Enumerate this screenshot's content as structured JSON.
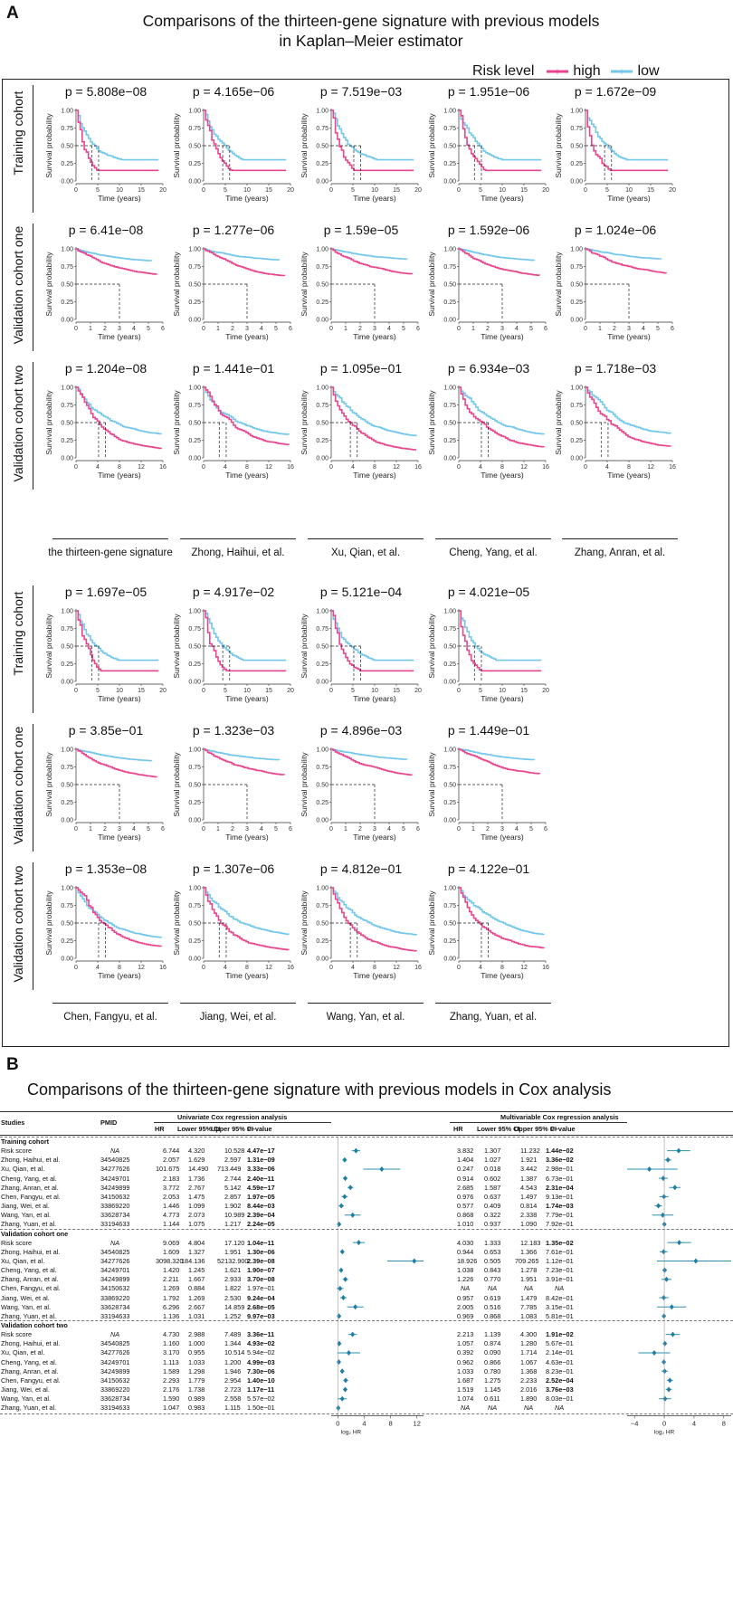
{
  "panel_a": {
    "letter": "A",
    "title_line1": "Comparisons of the thirteen-gene signature with previous models",
    "title_line2": "in Kaplan–Meier estimator",
    "legend_title": "Risk level",
    "legend_high": "high",
    "legend_low": "low",
    "colors": {
      "high": "#e8458f",
      "low": "#72c7ea"
    },
    "row_labels": [
      "Training cohort",
      "Validation cohort one",
      "Validation cohort two"
    ],
    "axis_ylabel": "Survival probability",
    "axis_xlabel": "Time (years)",
    "y_ticks": [
      "0.00",
      "0.25",
      "0.50",
      "0.75",
      "1.00"
    ],
    "x_ticks": {
      "train": [
        "0",
        "5",
        "10",
        "15",
        "20"
      ],
      "val1": [
        "0",
        "1",
        "2",
        "3",
        "4",
        "5",
        "6"
      ],
      "val2": [
        "0",
        "4",
        "8",
        "12",
        "16"
      ]
    },
    "block1_models": [
      "the thirteen-gene signature",
      "Zhong, Haihui, et al.",
      "Xu, Qian, et al.",
      "Cheng, Yang, et al.",
      "Zhang, Anran, et al."
    ],
    "block2_models": [
      "Chen, Fangyu, et al.",
      "Jiang, Wei, et al.",
      "Wang, Yan, et al.",
      "Zhang, Yuan, et al."
    ],
    "block1_p": [
      [
        "p = 5.808e−08",
        "p = 4.165e−06",
        "p = 7.519e−03",
        "p = 1.951e−06",
        "p = 1.672e−09"
      ],
      [
        "p = 6.41e−08",
        "p = 1.277e−06",
        "p = 1.59e−05",
        "p = 1.592e−06",
        "p = 1.024e−06"
      ],
      [
        "p = 1.204e−08",
        "p = 1.441e−01",
        "p = 1.095e−01",
        "p = 6.934e−03",
        "p = 1.718e−03"
      ]
    ],
    "block2_p": [
      [
        "p = 1.697e−05",
        "p = 4.917e−02",
        "p = 5.121e−04",
        "p = 4.021e−05"
      ],
      [
        "p = 3.85e−01",
        "p = 1.323e−03",
        "p = 4.896e−03",
        "p = 1.449e−01"
      ],
      [
        "p = 1.353e−08",
        "p = 1.307e−06",
        "p = 4.812e−01",
        "p = 4.122e−01"
      ]
    ]
  },
  "panel_b": {
    "letter": "B",
    "title": "Comparisons of the thirteen-gene signature with previous models in Cox analysis",
    "hdr_studies": "Studies",
    "hdr_pmid": "PMID",
    "hdr_uni": "Univariate Cox regression analysis",
    "hdr_multi": "Multivariable Cox regression analysis",
    "hdr_cols": [
      "HR",
      "Lower 95% CI",
      "Upper 95% CI",
      "P–value"
    ],
    "forest_axis_label": "log₂ HR",
    "uni_ticks": [
      "0",
      "4",
      "8",
      "12"
    ],
    "multi_ticks": [
      "−4",
      "0",
      "4",
      "8"
    ],
    "groups": [
      {
        "name": "Training cohort",
        "rows": [
          {
            "study": "Risk score",
            "pmid": "NA",
            "u": [
              "6.744",
              "4.320",
              "10.528",
              "4.47e−17"
            ],
            "ub": true,
            "m": [
              "3.832",
              "1.307",
              "11.232",
              "1.44e−02"
            ],
            "mb": true
          },
          {
            "study": "Zhong, Haihui, et al.",
            "pmid": "34540825",
            "u": [
              "2.057",
              "1.629",
              "2.597",
              "1.31e−09"
            ],
            "ub": true,
            "m": [
              "1.404",
              "1.027",
              "1.921",
              "3.36e−02"
            ],
            "mb": true
          },
          {
            "study": "Xu, Qian, et al.",
            "pmid": "34277626",
            "u": [
              "101.675",
              "14.490",
              "713.449",
              "3.33e−06"
            ],
            "ub": true,
            "m": [
              "0.247",
              "0.018",
              "3.442",
              "2.98e−01"
            ],
            "mb": false
          },
          {
            "study": "Cheng, Yang, et al.",
            "pmid": "34249701",
            "u": [
              "2.183",
              "1.736",
              "2.744",
              "2.40e−11"
            ],
            "ub": true,
            "m": [
              "0.914",
              "0.602",
              "1.387",
              "6.73e−01"
            ],
            "mb": false
          },
          {
            "study": "Zhang, Anran, et al.",
            "pmid": "34249899",
            "u": [
              "3.772",
              "2.767",
              "5.142",
              "4.59e−17"
            ],
            "ub": true,
            "m": [
              "2.685",
              "1.587",
              "4.543",
              "2.31e−04"
            ],
            "mb": true
          },
          {
            "study": "Chen, Fangyu, et al.",
            "pmid": "34150632",
            "u": [
              "2.053",
              "1.475",
              "2.857",
              "1.97e−05"
            ],
            "ub": true,
            "m": [
              "0.976",
              "0.637",
              "1.497",
              "9.13e−01"
            ],
            "mb": false
          },
          {
            "study": "Jiang, Wei, et al.",
            "pmid": "33869220",
            "u": [
              "1.446",
              "1.099",
              "1.902",
              "8.44e−03"
            ],
            "ub": true,
            "m": [
              "0.577",
              "0.409",
              "0.814",
              "1.74e−03"
            ],
            "mb": true
          },
          {
            "study": "Wang, Yan, et al.",
            "pmid": "33628734",
            "u": [
              "4.773",
              "2.073",
              "10.989",
              "2.39e−04"
            ],
            "ub": true,
            "m": [
              "0.868",
              "0.322",
              "2.338",
              "7.79e−01"
            ],
            "mb": false
          },
          {
            "study": "Zhang, Yuan, et al.",
            "pmid": "33194633",
            "u": [
              "1.144",
              "1.075",
              "1.217",
              "2.24e−05"
            ],
            "ub": true,
            "m": [
              "1.010",
              "0.937",
              "1.090",
              "7.92e−01"
            ],
            "mb": false
          }
        ]
      },
      {
        "name": "Validation cohort one",
        "rows": [
          {
            "study": "Risk score",
            "pmid": "NA",
            "u": [
              "9.069",
              "4.804",
              "17.120",
              "1.04e−11"
            ],
            "ub": true,
            "m": [
              "4.030",
              "1.333",
              "12.183",
              "1.35e−02"
            ],
            "mb": true
          },
          {
            "study": "Zhong, Haihui, et al.",
            "pmid": "34540825",
            "u": [
              "1.609",
              "1.327",
              "1.951",
              "1.30e−06"
            ],
            "ub": true,
            "m": [
              "0.944",
              "0.653",
              "1.366",
              "7.61e−01"
            ],
            "mb": false
          },
          {
            "study": "Xu, Qian, et al.",
            "pmid": "34277626",
            "u": [
              "3098.320",
              "184.136",
              "52132.900",
              "2.39e−08"
            ],
            "ub": true,
            "m": [
              "18.926",
              "0.505",
              "709.265",
              "1.12e−01"
            ],
            "mb": false
          },
          {
            "study": "Cheng, Yang, et al.",
            "pmid": "34249701",
            "u": [
              "1.420",
              "1.245",
              "1.621",
              "1.90e−07"
            ],
            "ub": true,
            "m": [
              "1.038",
              "0.843",
              "1.278",
              "7.23e−01"
            ],
            "mb": false
          },
          {
            "study": "Zhang, Anran, et al.",
            "pmid": "34249899",
            "u": [
              "2.211",
              "1.667",
              "2.933",
              "3.70e−08"
            ],
            "ub": true,
            "m": [
              "1.226",
              "0.770",
              "1.951",
              "3.91e−01"
            ],
            "mb": false
          },
          {
            "study": "Chen, Fangyu, et al.",
            "pmid": "34150632",
            "u": [
              "1.269",
              "0.884",
              "1.822",
              "1.97e−01"
            ],
            "ub": false,
            "m": [
              "NA",
              "NA",
              "NA",
              "NA"
            ],
            "mb": false
          },
          {
            "study": "Jiang, Wei, et al.",
            "pmid": "33869220",
            "u": [
              "1.792",
              "1.269",
              "2.530",
              "9.24e−04"
            ],
            "ub": true,
            "m": [
              "0.957",
              "0.619",
              "1.479",
              "8.42e−01"
            ],
            "mb": false
          },
          {
            "study": "Wang, Yan, et al.",
            "pmid": "33628734",
            "u": [
              "6.296",
              "2.667",
              "14.859",
              "2.68e−05"
            ],
            "ub": true,
            "m": [
              "2.005",
              "0.516",
              "7.785",
              "3.15e−01"
            ],
            "mb": false
          },
          {
            "study": "Zhang, Yuan, et al.",
            "pmid": "33194633",
            "u": [
              "1.136",
              "1.031",
              "1.252",
              "9.97e−03"
            ],
            "ub": true,
            "m": [
              "0.969",
              "0.868",
              "1.083",
              "5.81e−01"
            ],
            "mb": false
          }
        ]
      },
      {
        "name": "Validation cohort two",
        "rows": [
          {
            "study": "Risk score",
            "pmid": "NA",
            "u": [
              "4.730",
              "2.988",
              "7.489",
              "3.36e−11"
            ],
            "ub": true,
            "m": [
              "2.213",
              "1.139",
              "4.300",
              "1.91e−02"
            ],
            "mb": true
          },
          {
            "study": "Zhong, Haihui, et al.",
            "pmid": "34540825",
            "u": [
              "1.160",
              "1.000",
              "1.344",
              "4.93e−02"
            ],
            "ub": true,
            "m": [
              "1.057",
              "0.874",
              "1.280",
              "5.67e−01"
            ],
            "mb": false
          },
          {
            "study": "Xu, Qian, et al.",
            "pmid": "34277626",
            "u": [
              "3.170",
              "0.955",
              "10.514",
              "5.94e−02"
            ],
            "ub": false,
            "m": [
              "0.392",
              "0.090",
              "1.714",
              "2.14e−01"
            ],
            "mb": false
          },
          {
            "study": "Cheng, Yang, et al.",
            "pmid": "34249701",
            "u": [
              "1.113",
              "1.033",
              "1.200",
              "4.99e−03"
            ],
            "ub": true,
            "m": [
              "0.962",
              "0.866",
              "1.067",
              "4.63e−01"
            ],
            "mb": false
          },
          {
            "study": "Zhang, Anran, et al.",
            "pmid": "34249899",
            "u": [
              "1.589",
              "1.298",
              "1.946",
              "7.30e−06"
            ],
            "ub": true,
            "m": [
              "1.033",
              "0.780",
              "1.368",
              "8.23e−01"
            ],
            "mb": false
          },
          {
            "study": "Chen, Fangyu, et al.",
            "pmid": "34150632",
            "u": [
              "2.293",
              "1.779",
              "2.954",
              "1.40e−10"
            ],
            "ub": true,
            "m": [
              "1.687",
              "1.275",
              "2.233",
              "2.52e−04"
            ],
            "mb": true
          },
          {
            "study": "Jiang, Wei, et al.",
            "pmid": "33869220",
            "u": [
              "2.176",
              "1.738",
              "2.723",
              "1.17e−11"
            ],
            "ub": true,
            "m": [
              "1.519",
              "1.145",
              "2.016",
              "3.76e−03"
            ],
            "mb": true
          },
          {
            "study": "Wang, Yan, et al.",
            "pmid": "33628734",
            "u": [
              "1.590",
              "0.989",
              "2.558",
              "5.57e−02"
            ],
            "ub": false,
            "m": [
              "1.074",
              "0.611",
              "1.890",
              "8.03e−01"
            ],
            "mb": false
          },
          {
            "study": "Zhang, Yuan, et al.",
            "pmid": "33194633",
            "u": [
              "1.047",
              "0.983",
              "1.115",
              "1.50e−01"
            ],
            "ub": false,
            "m": [
              "NA",
              "NA",
              "NA",
              "NA"
            ],
            "mb": false
          }
        ]
      }
    ]
  }
}
